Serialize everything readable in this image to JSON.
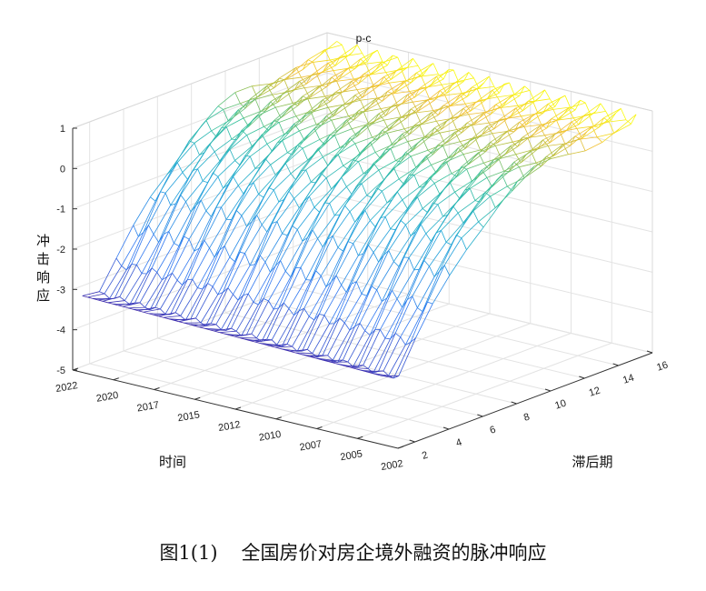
{
  "chart_data": {
    "type": "surface3d",
    "title": "p-c",
    "xlabel": "时间",
    "ylabel": "滞后期",
    "zlabel": "冲击响应",
    "x_ticks": [
      "2022",
      "2020",
      "2017",
      "2015",
      "2012",
      "2010",
      "2007",
      "2005",
      "2002"
    ],
    "y_ticks": [
      "2",
      "4",
      "6",
      "8",
      "10",
      "12",
      "14",
      "16"
    ],
    "z_ticks": [
      "1",
      "0",
      "-1",
      "-2",
      "-3",
      "-4",
      "-5"
    ],
    "zlim": [
      -5,
      1
    ],
    "ylim": [
      1,
      16
    ],
    "colormap": [
      "#3e26a8",
      "#2f77f0",
      "#1ea9d6",
      "#35c09b",
      "#a5c047",
      "#f1c035",
      "#f9fb0e"
    ],
    "lag": [
      1,
      2,
      3,
      4,
      5,
      6,
      7,
      8,
      9,
      10,
      11,
      12,
      13,
      14,
      15,
      16
    ],
    "response_early_period": [
      -3.1,
      -3.2,
      -2.6,
      -1.9,
      -1.2,
      -0.7,
      -0.3,
      0.0,
      0.2,
      0.35,
      0.45,
      0.5,
      0.55,
      0.6,
      0.65,
      0.7
    ],
    "response_late_period": [
      -3.3,
      -3.5,
      -2.8,
      -2.1,
      -1.4,
      -0.8,
      -0.4,
      -0.1,
      0.15,
      0.3,
      0.4,
      0.5,
      0.55,
      0.6,
      0.65,
      0.7
    ]
  },
  "caption": {
    "number": "图1(1)",
    "text": "全国房价对房企境外融资的脉冲响应"
  }
}
